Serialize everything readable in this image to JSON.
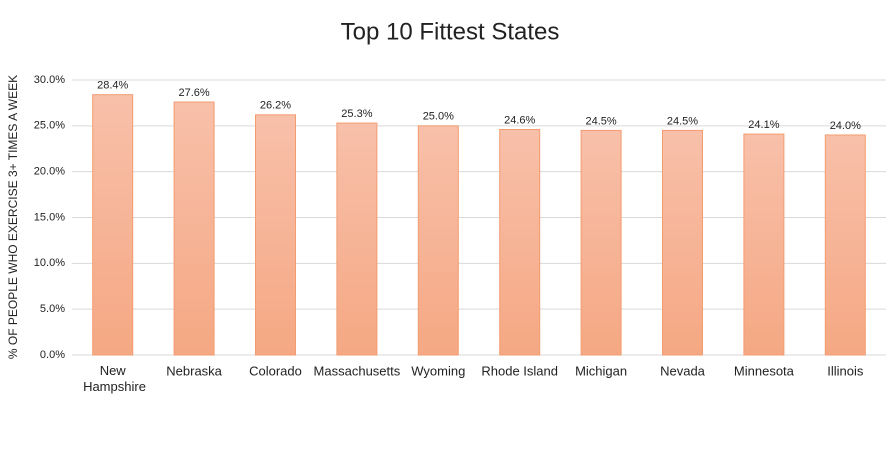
{
  "chart_data": {
    "type": "bar",
    "title": "Top 10 Fittest States",
    "y_label": "% OF PEOPLE WHO EXERCISE 3+ TIMES A WEEK",
    "categories": [
      "New Hampshire",
      "Nebraska",
      "Colorado",
      "Massachusetts",
      "Wyoming",
      "Rhode Island",
      "Michigan",
      "Nevada",
      "Minnesota",
      "Illinois"
    ],
    "values": [
      28.4,
      27.6,
      26.2,
      25.3,
      25.0,
      24.6,
      24.5,
      24.5,
      24.1,
      24.0
    ],
    "value_labels": [
      "28.4%",
      "27.6%",
      "26.2%",
      "25.3%",
      "25.0%",
      "24.6%",
      "24.5%",
      "24.5%",
      "24.1%",
      "24.0%"
    ],
    "color": "#f5a883",
    "ylim": [
      0,
      30
    ],
    "yticks": [
      {
        "value": 0,
        "label": "0.0%"
      },
      {
        "value": 5,
        "label": "5.0%"
      },
      {
        "value": 10,
        "label": "10.0%"
      },
      {
        "value": 15,
        "label": "15.0%"
      },
      {
        "value": 20,
        "label": "20.0%"
      },
      {
        "value": 25,
        "label": "25.0%"
      },
      {
        "value": 30,
        "label": "30.0%"
      }
    ],
    "grid": true
  }
}
